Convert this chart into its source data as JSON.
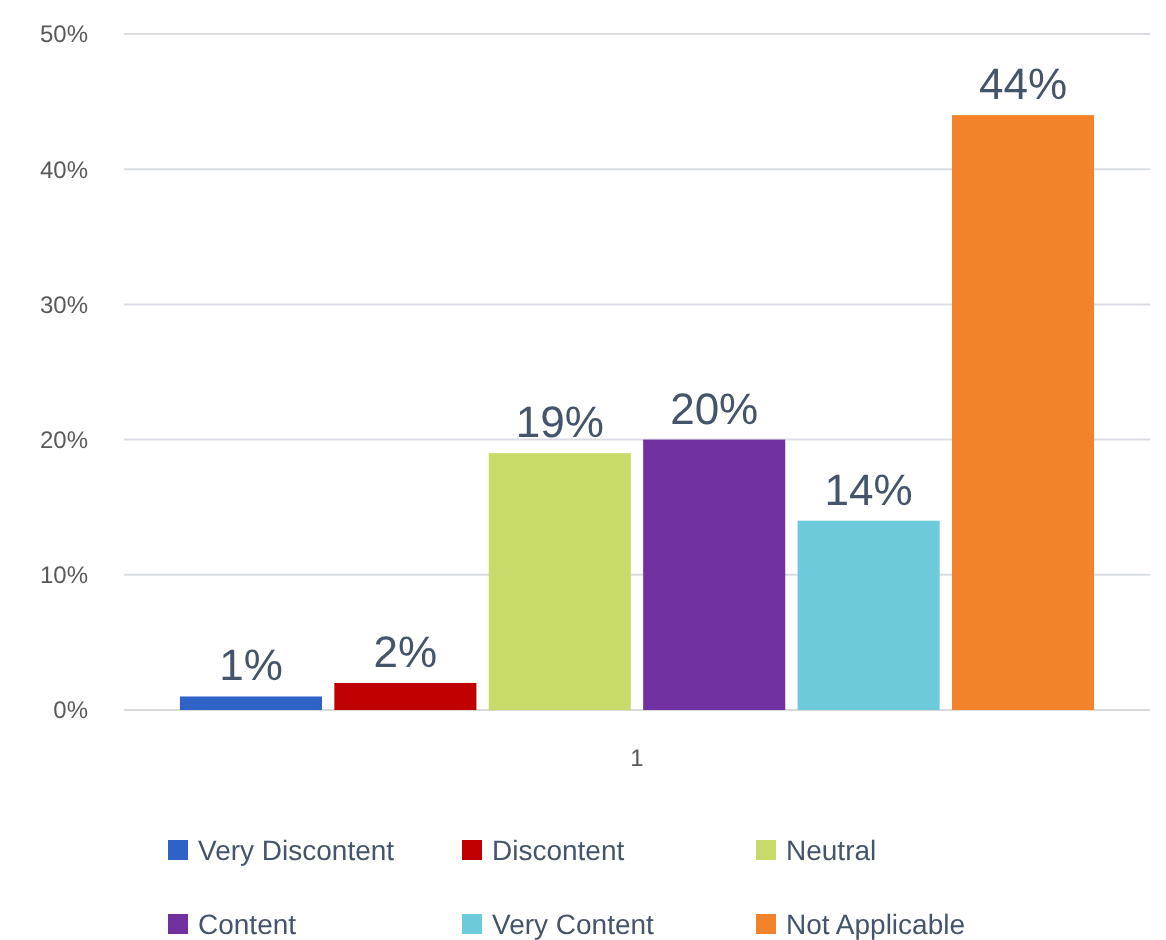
{
  "chart_data": {
    "type": "bar",
    "categories": [
      "1"
    ],
    "series": [
      {
        "name": "Very Discontent",
        "color": "#2e62c6",
        "values": [
          1
        ],
        "value_labels": [
          "1%"
        ]
      },
      {
        "name": "Discontent",
        "color": "#c00000",
        "values": [
          2
        ],
        "value_labels": [
          "2%"
        ]
      },
      {
        "name": "Neutral",
        "color": "#c8da6a",
        "values": [
          19
        ],
        "value_labels": [
          "19%"
        ]
      },
      {
        "name": "Content",
        "color": "#7030a0",
        "values": [
          20
        ],
        "value_labels": [
          "20%"
        ]
      },
      {
        "name": "Very Content",
        "color": "#6ccada",
        "values": [
          14
        ],
        "value_labels": [
          "14%"
        ]
      },
      {
        "name": "Not Applicable",
        "color": "#f2832a",
        "values": [
          44
        ],
        "value_labels": [
          "44%"
        ]
      }
    ],
    "ylim": [
      0,
      50
    ],
    "yticks": [
      {
        "value": 0,
        "label": "0%"
      },
      {
        "value": 10,
        "label": "10%"
      },
      {
        "value": 20,
        "label": "20%"
      },
      {
        "value": 30,
        "label": "30%"
      },
      {
        "value": 40,
        "label": "40%"
      },
      {
        "value": 50,
        "label": "50%"
      }
    ],
    "grid": "y",
    "legend": "bottom"
  }
}
